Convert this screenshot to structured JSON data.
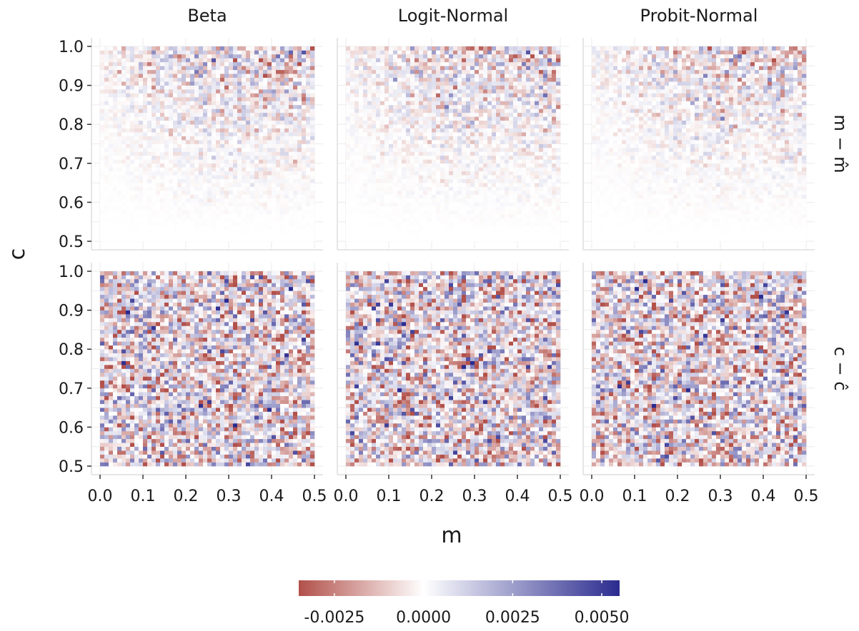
{
  "chart_data": {
    "type": "heatmap",
    "title": "",
    "xlabel": "m",
    "ylabel": "c",
    "columns": [
      "Beta",
      "Logit-Normal",
      "Probit-Normal"
    ],
    "rows": [
      "m − m̂",
      "c − ĉ"
    ],
    "x_range": [
      0.0,
      0.5
    ],
    "y_range": [
      0.5,
      1.0
    ],
    "x_ticks": [
      0.0,
      0.1,
      0.2,
      0.3,
      0.4,
      0.5
    ],
    "y_ticks": [
      0.5,
      0.6,
      0.7,
      0.8,
      0.9,
      1.0
    ],
    "x_tick_labels": [
      "0.0",
      "0.1",
      "0.2",
      "0.3",
      "0.4",
      "0.5"
    ],
    "y_tick_labels": [
      "0.5",
      "0.6",
      "0.7",
      "0.8",
      "0.9",
      "1.0"
    ],
    "grid": true,
    "grid_resolution": {
      "nx": 50,
      "ny": 50
    },
    "color_scale": {
      "type": "diverging",
      "low": "#B2504A",
      "mid": "#FFFFFF",
      "high": "#2B2B8F",
      "limits": [
        -0.0035,
        0.0055
      ],
      "ticks": [
        -0.0025,
        0.0,
        0.0025,
        0.005
      ],
      "tick_labels": [
        "-0.0025",
        "0.0000",
        "0.0025",
        "0.0050"
      ]
    },
    "legend": {
      "placement": "bottom"
    },
    "panel_pattern": {
      "m − m̂": "noise amplitude grows with c and with m (near zero for small c or small m)",
      "c − ĉ": "uniform noise across the grid, amplitude about 0.002"
    },
    "colors": {
      "panel_background": "#FFFFFF",
      "axis_line": "#E6E6E6",
      "grid_line": "#EBEBEB",
      "text": "#1A1A1A"
    }
  }
}
